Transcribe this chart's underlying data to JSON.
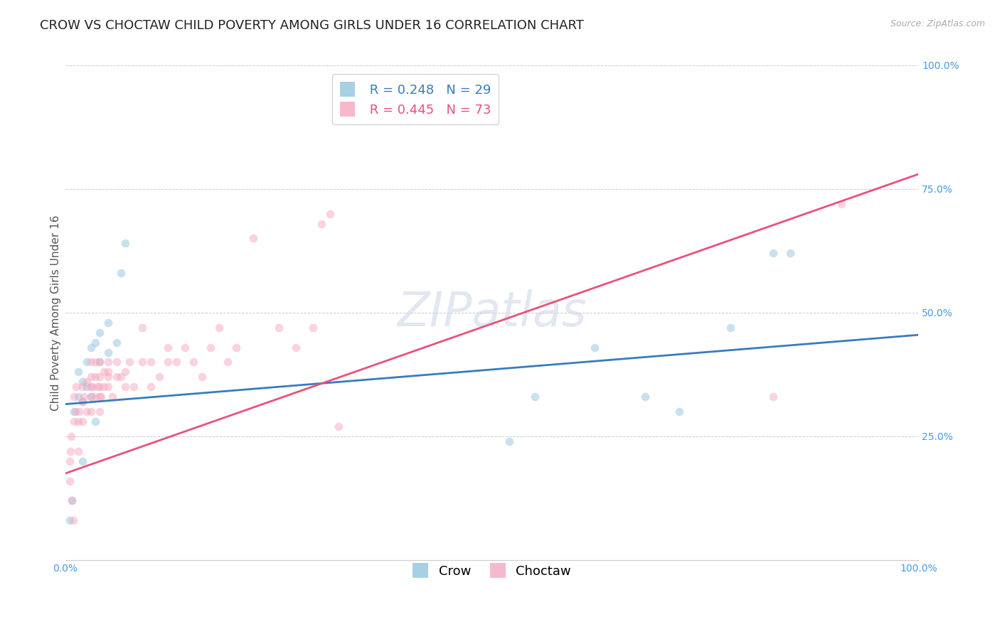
{
  "title": "CROW VS CHOCTAW CHILD POVERTY AMONG GIRLS UNDER 16 CORRELATION CHART",
  "source": "Source: ZipAtlas.com",
  "ylabel": "Child Poverty Among Girls Under 16",
  "crow_label": "Crow",
  "choctaw_label": "Choctaw",
  "crow_R": 0.248,
  "crow_N": 29,
  "choctaw_R": 0.445,
  "choctaw_N": 73,
  "crow_color": "#92c5de",
  "choctaw_color": "#f4a8c0",
  "crow_line_color": "#3a7bbf",
  "choctaw_line_color": "#e8527a",
  "background_color": "#ffffff",
  "watermark_text": "ZIPatlas",
  "xlim": [
    0.0,
    1.0
  ],
  "ylim": [
    0.0,
    1.0
  ],
  "x_ticks": [
    0.0,
    1.0
  ],
  "x_tick_labels": [
    "0.0%",
    "100.0%"
  ],
  "y_ticks": [
    0.25,
    0.5,
    0.75,
    1.0
  ],
  "y_tick_labels": [
    "25.0%",
    "50.0%",
    "75.0%",
    "100.0%"
  ],
  "crow_x": [
    0.005,
    0.008,
    0.01,
    0.015,
    0.015,
    0.02,
    0.02,
    0.02,
    0.025,
    0.025,
    0.03,
    0.03,
    0.035,
    0.035,
    0.04,
    0.04,
    0.05,
    0.05,
    0.06,
    0.065,
    0.07,
    0.52,
    0.55,
    0.62,
    0.68,
    0.72,
    0.78,
    0.83,
    0.85
  ],
  "crow_y": [
    0.08,
    0.12,
    0.3,
    0.33,
    0.38,
    0.32,
    0.36,
    0.2,
    0.35,
    0.4,
    0.33,
    0.43,
    0.28,
    0.44,
    0.4,
    0.46,
    0.42,
    0.48,
    0.44,
    0.58,
    0.64,
    0.24,
    0.33,
    0.43,
    0.33,
    0.3,
    0.47,
    0.62,
    0.62
  ],
  "choctaw_x": [
    0.005,
    0.005,
    0.006,
    0.007,
    0.008,
    0.009,
    0.01,
    0.01,
    0.012,
    0.013,
    0.015,
    0.015,
    0.016,
    0.02,
    0.02,
    0.02,
    0.022,
    0.025,
    0.025,
    0.03,
    0.03,
    0.03,
    0.03,
    0.03,
    0.032,
    0.035,
    0.035,
    0.035,
    0.038,
    0.04,
    0.04,
    0.04,
    0.04,
    0.04,
    0.042,
    0.045,
    0.045,
    0.05,
    0.05,
    0.05,
    0.05,
    0.055,
    0.06,
    0.06,
    0.065,
    0.07,
    0.07,
    0.075,
    0.08,
    0.09,
    0.09,
    0.1,
    0.1,
    0.11,
    0.12,
    0.12,
    0.13,
    0.14,
    0.15,
    0.16,
    0.17,
    0.18,
    0.19,
    0.2,
    0.22,
    0.25,
    0.27,
    0.29,
    0.3,
    0.31,
    0.32,
    0.83,
    0.91
  ],
  "choctaw_y": [
    0.16,
    0.2,
    0.22,
    0.25,
    0.12,
    0.08,
    0.28,
    0.33,
    0.3,
    0.35,
    0.22,
    0.28,
    0.3,
    0.28,
    0.32,
    0.35,
    0.33,
    0.3,
    0.36,
    0.3,
    0.33,
    0.35,
    0.37,
    0.4,
    0.35,
    0.33,
    0.37,
    0.4,
    0.35,
    0.3,
    0.33,
    0.35,
    0.37,
    0.4,
    0.33,
    0.35,
    0.38,
    0.35,
    0.38,
    0.37,
    0.4,
    0.33,
    0.37,
    0.4,
    0.37,
    0.35,
    0.38,
    0.4,
    0.35,
    0.4,
    0.47,
    0.35,
    0.4,
    0.37,
    0.4,
    0.43,
    0.4,
    0.43,
    0.4,
    0.37,
    0.43,
    0.47,
    0.4,
    0.43,
    0.65,
    0.47,
    0.43,
    0.47,
    0.68,
    0.7,
    0.27,
    0.33,
    0.72
  ],
  "title_fontsize": 13,
  "axis_label_fontsize": 11,
  "tick_fontsize": 10,
  "legend_fontsize": 13,
  "source_fontsize": 9,
  "watermark_fontsize": 48,
  "scatter_size": 70,
  "scatter_alpha": 0.5
}
